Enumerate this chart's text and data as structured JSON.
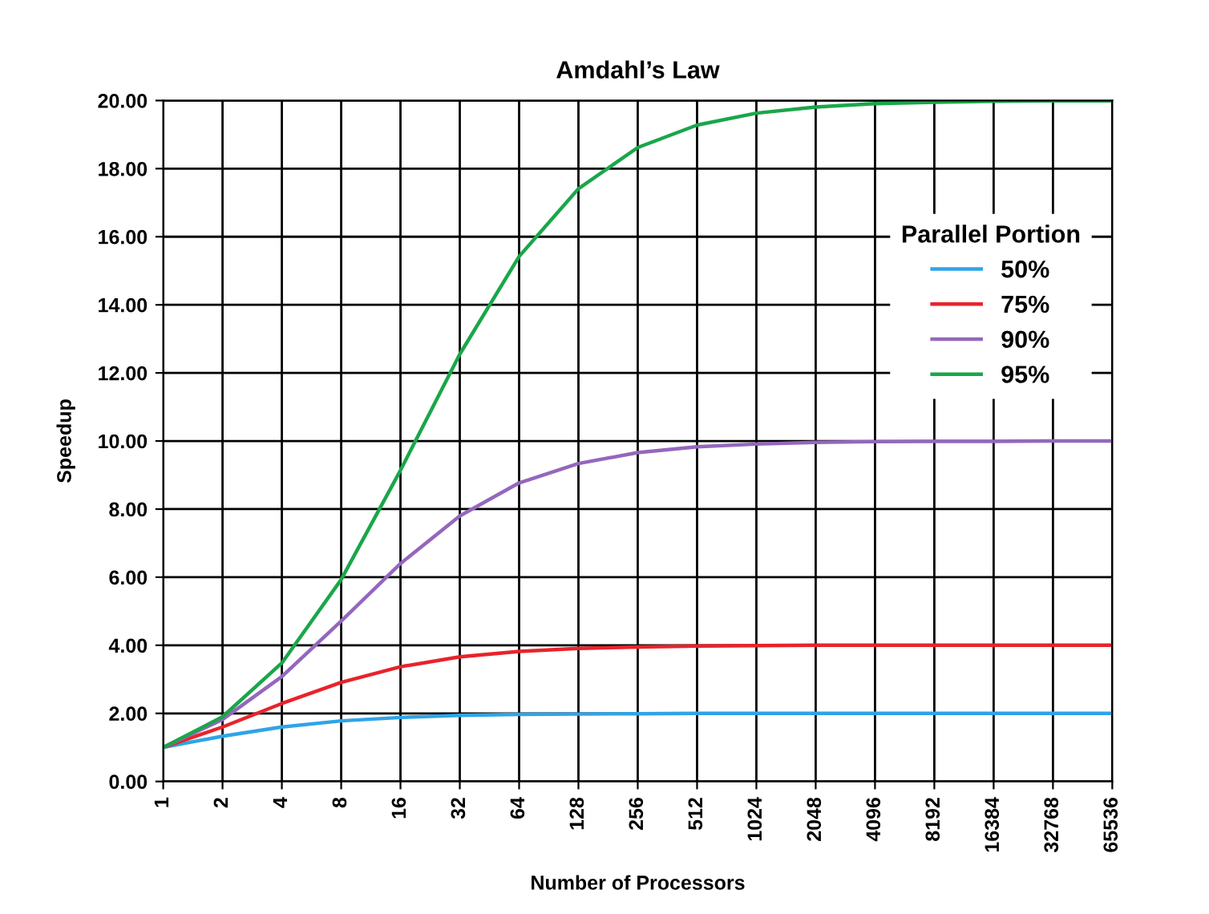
{
  "chart_data": {
    "type": "line",
    "title": "Amdahl’s Law",
    "xlabel": "Number of Processors",
    "ylabel": "Speedup",
    "legend_title": "Parallel Portion",
    "categories": [
      "1",
      "2",
      "4",
      "8",
      "16",
      "32",
      "64",
      "128",
      "256",
      "512",
      "1024",
      "2048",
      "4096",
      "8192",
      "16384",
      "32768",
      "65536"
    ],
    "series": [
      {
        "name": "50%",
        "color": "#2fa4e7",
        "values": [
          1.0,
          1.33,
          1.6,
          1.78,
          1.88,
          1.94,
          1.97,
          1.98,
          1.99,
          2.0,
          2.0,
          2.0,
          2.0,
          2.0,
          2.0,
          2.0,
          2.0
        ]
      },
      {
        "name": "75%",
        "color": "#e8232b",
        "values": [
          1.0,
          1.6,
          2.29,
          2.91,
          3.37,
          3.66,
          3.82,
          3.91,
          3.95,
          3.98,
          3.99,
          4.0,
          4.0,
          4.0,
          4.0,
          4.0,
          4.0
        ]
      },
      {
        "name": "90%",
        "color": "#9467bd",
        "values": [
          1.0,
          1.82,
          3.08,
          4.71,
          6.4,
          7.8,
          8.77,
          9.34,
          9.66,
          9.83,
          9.91,
          9.96,
          9.98,
          9.99,
          9.99,
          10.0,
          10.0
        ]
      },
      {
        "name": "95%",
        "color": "#1aa64a",
        "values": [
          1.0,
          1.9,
          3.48,
          5.93,
          9.14,
          12.55,
          15.42,
          17.41,
          18.62,
          19.28,
          19.63,
          19.81,
          19.91,
          19.95,
          19.98,
          19.99,
          19.99
        ]
      }
    ],
    "ylim": [
      0,
      20
    ],
    "yticks": [
      {
        "value": 0,
        "label": "0.00"
      },
      {
        "value": 2,
        "label": "2.00"
      },
      {
        "value": 4,
        "label": "4.00"
      },
      {
        "value": 6,
        "label": "6.00"
      },
      {
        "value": 8,
        "label": "8.00"
      },
      {
        "value": 10,
        "label": "10.00"
      },
      {
        "value": 12,
        "label": "12.00"
      },
      {
        "value": 14,
        "label": "14.00"
      },
      {
        "value": 16,
        "label": "16.00"
      },
      {
        "value": 18,
        "label": "18.00"
      },
      {
        "value": 20,
        "label": "20.00"
      }
    ],
    "grid": true,
    "legend": "top right",
    "marker": "none",
    "line_style": "solid"
  }
}
